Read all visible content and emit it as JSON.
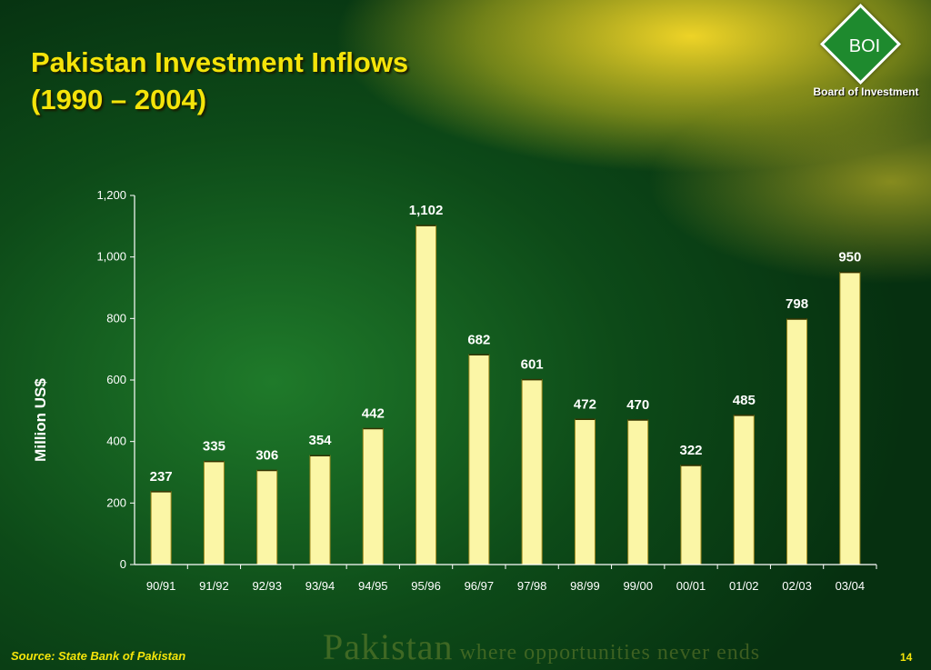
{
  "slide": {
    "title_line1": "Pakistan Investment Inflows",
    "title_line2": "(1990 – 2004)",
    "logo_text": "BOI",
    "logo_subtext": "Board of Investment",
    "source": "Source: State Bank of Pakistan",
    "tagline_main": "Pakistan",
    "tagline_rest": " where opportunities never ends",
    "page_number": "14"
  },
  "colors": {
    "title": "#f4e40a",
    "bar_fill": "#fbf6a6",
    "bar_stroke": "#a08a20",
    "axis": "#ffffff",
    "text": "#ffffff"
  },
  "chart_data": {
    "type": "bar",
    "categories": [
      "90/91",
      "91/92",
      "92/93",
      "93/94",
      "94/95",
      "95/96",
      "96/97",
      "97/98",
      "98/99",
      "99/00",
      "00/01",
      "01/02",
      "02/03",
      "03/04"
    ],
    "values": [
      237,
      335,
      306,
      354,
      442,
      1102,
      682,
      601,
      472,
      470,
      322,
      485,
      798,
      950
    ],
    "value_labels": [
      "237",
      "335",
      "306",
      "354",
      "442",
      "1,102",
      "682",
      "601",
      "472",
      "470",
      "322",
      "485",
      "798",
      "950"
    ],
    "ylabel": "Million US$",
    "ylim": [
      0,
      1200
    ],
    "yticks": [
      0,
      200,
      400,
      600,
      800,
      1000,
      1200
    ],
    "ytick_labels": [
      "0",
      "200",
      "400",
      "600",
      "800",
      "1,000",
      "1,200"
    ],
    "grid": false,
    "legend": "none"
  }
}
